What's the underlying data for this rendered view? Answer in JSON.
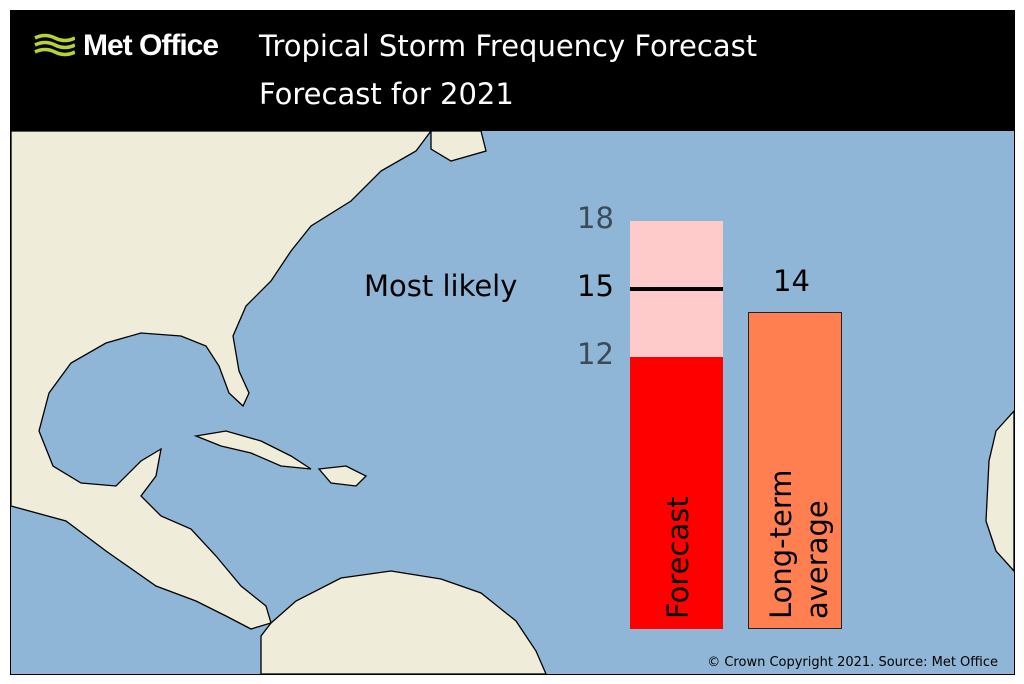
{
  "header": {
    "logo_text": "Met Office",
    "title": "Tropical Storm Frequency Forecast",
    "subtitle": "Forecast for 2021"
  },
  "colors": {
    "forecast_bar": "#ff0000",
    "forecast_range": "#fecaca",
    "average_bar": "#ff7f50",
    "ocean": "#8fb6d6",
    "land": "#efedda",
    "logo_green": "#b5d334"
  },
  "chart_data": {
    "type": "bar",
    "title": "Tropical Storm Frequency Forecast",
    "categories": [
      "Forecast",
      "Long-term average"
    ],
    "forecast": {
      "range_low": 12,
      "range_high": 18,
      "most_likely": 15,
      "most_likely_label": "Most likely"
    },
    "average": 14,
    "tick_labels": [
      "18",
      "15",
      "12"
    ],
    "value_labels": {
      "average": "14"
    },
    "ylim": [
      0,
      18
    ]
  },
  "footer": {
    "copyright": "© Crown Copyright 2021. Source: Met Office"
  }
}
